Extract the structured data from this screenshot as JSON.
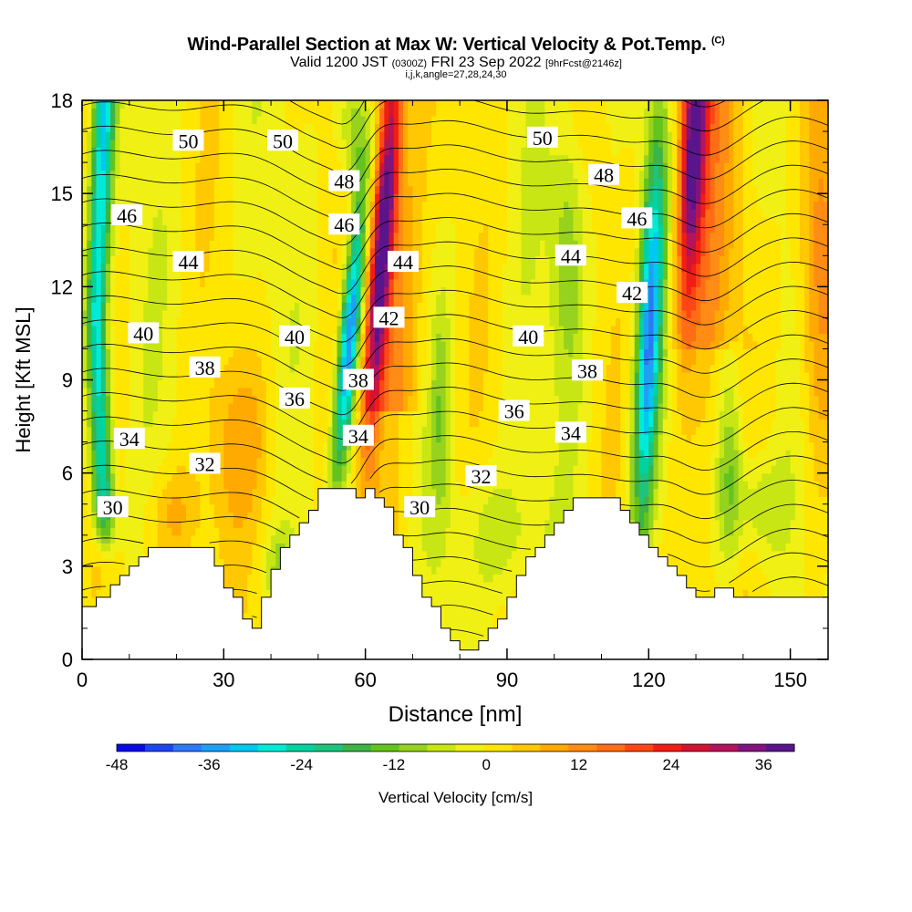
{
  "header": {
    "title": "Wind-Parallel Section at Max W: Vertical Velocity & Pot.Temp.",
    "title_mark": "(C)",
    "valid_main": "Valid 1200 JST",
    "valid_utc": "(0300Z)",
    "valid_date": "FRI 23 Sep 2022",
    "forecast": "[9hrFcst@2146z]",
    "indices": "i,j,k,angle=27,28,24,30"
  },
  "chart_data": {
    "type": "heatmap",
    "xlabel": "Distance [nm]",
    "ylabel": "Height [Kft MSL]",
    "xlim": [
      0,
      158
    ],
    "ylim": [
      0,
      18
    ],
    "x_ticks": [
      0,
      30,
      60,
      90,
      120,
      150
    ],
    "y_ticks": [
      0,
      3,
      6,
      9,
      12,
      15,
      18
    ],
    "grid": false,
    "colorbar": {
      "label": "Vertical Velocity [cm/s]",
      "ticks": [
        -48,
        -36,
        -24,
        -12,
        0,
        12,
        24,
        36
      ],
      "range": [
        -48,
        40
      ],
      "step": 4,
      "colors": [
        "#0a0ae6",
        "#1e46f0",
        "#2d78f5",
        "#1ea0f5",
        "#00c8f0",
        "#00ebd7",
        "#00d2a0",
        "#1ec37d",
        "#3cb446",
        "#64c31e",
        "#96d21e",
        "#c8e614",
        "#f0f014",
        "#ffe600",
        "#ffc800",
        "#ffaa00",
        "#ff8c14",
        "#ff6e14",
        "#ff4614",
        "#f01e14",
        "#d21432",
        "#b4145a",
        "#82147d",
        "#5a148c"
      ]
    },
    "contour_field": "Potential Temperature",
    "contour_labels": [
      {
        "value": "50",
        "x": 22.5,
        "y": 16.7
      },
      {
        "value": "50",
        "x": 42.5,
        "y": 16.7
      },
      {
        "value": "50",
        "x": 97.5,
        "y": 16.8
      },
      {
        "value": "48",
        "x": 55.5,
        "y": 15.4
      },
      {
        "value": "48",
        "x": 110.5,
        "y": 15.6
      },
      {
        "value": "46",
        "x": 9.5,
        "y": 14.3
      },
      {
        "value": "46",
        "x": 55.5,
        "y": 14.0
      },
      {
        "value": "46",
        "x": 117.5,
        "y": 14.2
      },
      {
        "value": "44",
        "x": 22.5,
        "y": 12.8
      },
      {
        "value": "44",
        "x": 68.0,
        "y": 12.8
      },
      {
        "value": "44",
        "x": 103.5,
        "y": 13.0
      },
      {
        "value": "42",
        "x": 65.0,
        "y": 11.0
      },
      {
        "value": "42",
        "x": 116.5,
        "y": 11.8
      },
      {
        "value": "40",
        "x": 13.0,
        "y": 10.5
      },
      {
        "value": "40",
        "x": 45.0,
        "y": 10.4
      },
      {
        "value": "40",
        "x": 94.5,
        "y": 10.4
      },
      {
        "value": "38",
        "x": 26.0,
        "y": 9.4
      },
      {
        "value": "38",
        "x": 58.5,
        "y": 9.0
      },
      {
        "value": "38",
        "x": 107.0,
        "y": 9.3
      },
      {
        "value": "36",
        "x": 45.0,
        "y": 8.4
      },
      {
        "value": "36",
        "x": 91.5,
        "y": 8.0
      },
      {
        "value": "34",
        "x": 10.0,
        "y": 7.1
      },
      {
        "value": "34",
        "x": 58.5,
        "y": 7.2
      },
      {
        "value": "34",
        "x": 103.5,
        "y": 7.3
      },
      {
        "value": "32",
        "x": 26.0,
        "y": 6.3
      },
      {
        "value": "32",
        "x": 84.5,
        "y": 5.9
      },
      {
        "value": "30",
        "x": 6.5,
        "y": 4.9
      },
      {
        "value": "30",
        "x": 71.5,
        "y": 4.9
      }
    ],
    "theta_levels": [
      24,
      25,
      26,
      27,
      28,
      29,
      30,
      31,
      32,
      33,
      34,
      35,
      36,
      37,
      38,
      39,
      40,
      41,
      42,
      43,
      44,
      45,
      46,
      47,
      48,
      49,
      50,
      51,
      52
    ],
    "terrain": [
      [
        0,
        1.7
      ],
      [
        3,
        1.7
      ],
      [
        3,
        2.0
      ],
      [
        6,
        2.0
      ],
      [
        6,
        2.4
      ],
      [
        8,
        2.4
      ],
      [
        8,
        2.7
      ],
      [
        10,
        2.7
      ],
      [
        10,
        3.0
      ],
      [
        12,
        3.0
      ],
      [
        12,
        3.3
      ],
      [
        14,
        3.3
      ],
      [
        14,
        3.6
      ],
      [
        28,
        3.6
      ],
      [
        28,
        3.0
      ],
      [
        30,
        3.0
      ],
      [
        30,
        2.3
      ],
      [
        32,
        2.3
      ],
      [
        32,
        2.0
      ],
      [
        34,
        2.0
      ],
      [
        34,
        1.3
      ],
      [
        36,
        1.3
      ],
      [
        36,
        1.0
      ],
      [
        38,
        1.0
      ],
      [
        38,
        2.0
      ],
      [
        40,
        2.0
      ],
      [
        40,
        2.9
      ],
      [
        42,
        2.9
      ],
      [
        42,
        3.6
      ],
      [
        44,
        3.6
      ],
      [
        44,
        4.0
      ],
      [
        46,
        4.0
      ],
      [
        46,
        4.4
      ],
      [
        48,
        4.4
      ],
      [
        48,
        4.8
      ],
      [
        50,
        4.8
      ],
      [
        50,
        5.5
      ],
      [
        58,
        5.5
      ],
      [
        58,
        5.2
      ],
      [
        60,
        5.2
      ],
      [
        60,
        5.5
      ],
      [
        62,
        5.5
      ],
      [
        62,
        5.2
      ],
      [
        64,
        5.2
      ],
      [
        64,
        4.9
      ],
      [
        66,
        4.9
      ],
      [
        66,
        4.0
      ],
      [
        68,
        4.0
      ],
      [
        68,
        3.6
      ],
      [
        70,
        3.6
      ],
      [
        70,
        2.7
      ],
      [
        72,
        2.7
      ],
      [
        72,
        2.0
      ],
      [
        74,
        2.0
      ],
      [
        74,
        1.7
      ],
      [
        76,
        1.7
      ],
      [
        76,
        1.0
      ],
      [
        78,
        1.0
      ],
      [
        78,
        0.6
      ],
      [
        80,
        0.6
      ],
      [
        80,
        0.3
      ],
      [
        84,
        0.3
      ],
      [
        84,
        0.6
      ],
      [
        86,
        0.6
      ],
      [
        86,
        1.0
      ],
      [
        88,
        1.0
      ],
      [
        88,
        1.3
      ],
      [
        90,
        1.3
      ],
      [
        90,
        2.0
      ],
      [
        92,
        2.0
      ],
      [
        92,
        2.7
      ],
      [
        94,
        2.7
      ],
      [
        94,
        3.3
      ],
      [
        96,
        3.3
      ],
      [
        96,
        3.6
      ],
      [
        98,
        3.6
      ],
      [
        98,
        4.0
      ],
      [
        100,
        4.0
      ],
      [
        100,
        4.4
      ],
      [
        102,
        4.4
      ],
      [
        102,
        4.8
      ],
      [
        104,
        4.8
      ],
      [
        104,
        5.2
      ],
      [
        114,
        5.2
      ],
      [
        114,
        4.8
      ],
      [
        116,
        4.8
      ],
      [
        116,
        4.4
      ],
      [
        118,
        4.4
      ],
      [
        118,
        4.0
      ],
      [
        120,
        4.0
      ],
      [
        120,
        3.6
      ],
      [
        122,
        3.6
      ],
      [
        122,
        3.3
      ],
      [
        124,
        3.3
      ],
      [
        124,
        3.0
      ],
      [
        126,
        3.0
      ],
      [
        126,
        2.7
      ],
      [
        128,
        2.7
      ],
      [
        128,
        2.3
      ],
      [
        130,
        2.3
      ],
      [
        130,
        2.0
      ],
      [
        134,
        2.0
      ],
      [
        134,
        2.3
      ],
      [
        138,
        2.3
      ],
      [
        138,
        2.0
      ],
      [
        158,
        2.0
      ]
    ]
  }
}
